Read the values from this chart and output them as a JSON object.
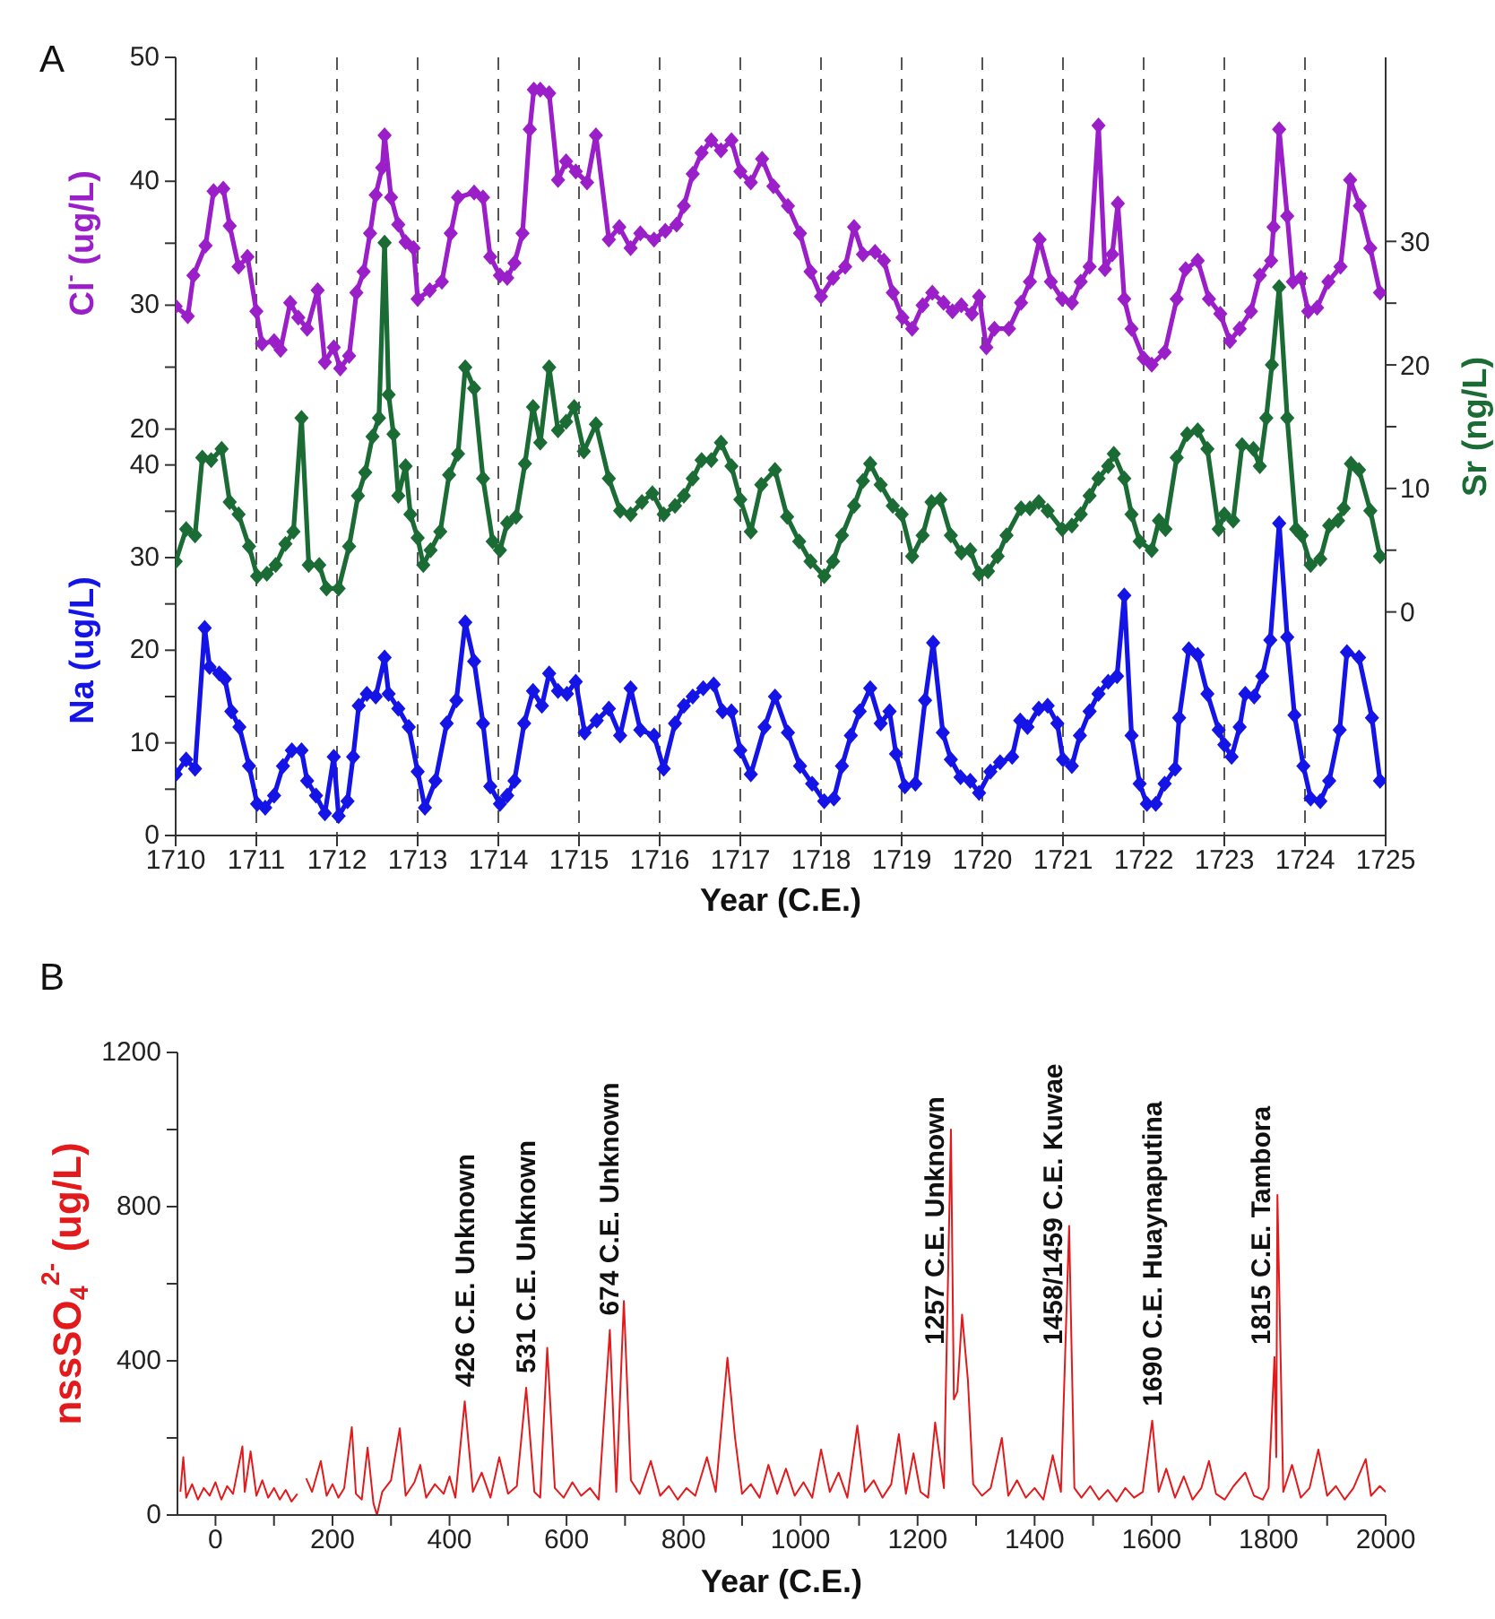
{
  "chart_data": [
    {
      "type": "line",
      "title": "A",
      "xlabel": "Year (C.E.)",
      "ylabel": "Cl$^{-}$ (ug/L)",
      "y2label": "Sr (ng/L)",
      "y3label": "Na (ug/L)",
      "xlim": [
        1710,
        1725
      ],
      "xticks": [
        1710,
        1711,
        1712,
        1713,
        1714,
        1715,
        1716,
        1717,
        1718,
        1719,
        1720,
        1721,
        1722,
        1723,
        1724,
        1725
      ],
      "ylim": [
        -12.8,
        50
      ],
      "yticks": [
        20,
        {
          "value": 25,
          "label": null
        },
        30,
        {
          "value": 35,
          "label": null
        },
        40,
        {
          "value": 45,
          "label": null
        },
        50
      ],
      "y2lim": [
        -18.1,
        44.9
      ],
      "y2ticks": [
        0,
        {
          "value": 5,
          "label": null
        },
        10,
        {
          "value": 15,
          "label": null
        },
        20,
        {
          "value": 25,
          "label": null
        },
        30
      ],
      "y3lim": [
        0,
        84
      ],
      "y3ticks": [
        0,
        {
          "value": 5,
          "label": null
        },
        10,
        {
          "value": 15,
          "label": null
        },
        20,
        {
          "value": 25,
          "label": null
        },
        30,
        {
          "value": 35,
          "label": null
        },
        40
      ],
      "grid": "x",
      "marker": "diamond",
      "series": [
        {
          "color": "#9a1fc8",
          "axis": "y",
          "x": [
            1710.0,
            1710.15,
            1710.22,
            1710.37,
            1710.47,
            1710.59,
            1710.67,
            1710.78,
            1710.89,
            1711.0,
            1711.07,
            1711.22,
            1711.3,
            1711.42,
            1711.52,
            1711.63,
            1711.76,
            1711.85,
            1711.96,
            1712.04,
            1712.15,
            1712.24,
            1712.33,
            1712.41,
            1712.48,
            1712.56,
            1712.59,
            1712.67,
            1712.76,
            1712.85,
            1712.95,
            1713.0,
            1713.15,
            1713.3,
            1713.41,
            1713.5,
            1713.7,
            1713.81,
            1713.9,
            1714.02,
            1714.11,
            1714.2,
            1714.3,
            1714.39,
            1714.44,
            1714.52,
            1714.63,
            1714.74,
            1714.84,
            1714.96,
            1715.1,
            1715.21,
            1715.37,
            1715.5,
            1715.64,
            1715.76,
            1715.93,
            1716.07,
            1716.21,
            1716.3,
            1716.41,
            1716.52,
            1716.64,
            1716.76,
            1716.89,
            1717.0,
            1717.13,
            1717.27,
            1717.41,
            1717.59,
            1717.74,
            1717.87,
            1718.0,
            1718.15,
            1718.3,
            1718.41,
            1718.52,
            1718.67,
            1718.78,
            1718.89,
            1719.01,
            1719.13,
            1719.26,
            1719.38,
            1719.52,
            1719.63,
            1719.74,
            1719.87,
            1719.96,
            1720.05,
            1720.15,
            1720.33,
            1720.48,
            1720.59,
            1720.71,
            1720.85,
            1720.99,
            1721.11,
            1721.22,
            1721.33,
            1721.44,
            1721.52,
            1721.61,
            1721.68,
            1721.76,
            1721.85,
            1722.0,
            1722.1,
            1722.26,
            1722.41,
            1722.52,
            1722.67,
            1722.81,
            1722.95,
            1723.07,
            1723.19,
            1723.33,
            1723.44,
            1723.58,
            1723.61,
            1723.68,
            1723.78,
            1723.85,
            1723.95,
            1724.04,
            1724.15,
            1724.29,
            1724.44,
            1724.56,
            1724.68,
            1724.81,
            1724.93
          ],
          "values": [
            29.9,
            29.1,
            32.4,
            34.8,
            39.2,
            39.4,
            36.4,
            33.1,
            33.9,
            29.5,
            26.9,
            27.1,
            26.4,
            30.2,
            29.0,
            28.1,
            31.2,
            25.4,
            26.6,
            24.9,
            25.9,
            31.0,
            32.7,
            35.8,
            38.9,
            41.1,
            43.7,
            38.7,
            36.5,
            35.1,
            34.6,
            30.5,
            31.2,
            31.9,
            35.8,
            38.7,
            39.1,
            38.7,
            33.9,
            32.4,
            32.2,
            33.4,
            35.8,
            44.2,
            47.4,
            47.4,
            47.1,
            40.1,
            41.6,
            40.8,
            39.9,
            43.7,
            35.3,
            36.3,
            34.6,
            35.8,
            35.3,
            36.0,
            36.5,
            38.0,
            40.6,
            42.3,
            43.3,
            42.5,
            43.3,
            40.8,
            39.9,
            41.8,
            39.6,
            38.0,
            35.8,
            32.7,
            30.7,
            32.2,
            33.1,
            36.3,
            34.1,
            34.3,
            33.6,
            31.0,
            29.0,
            28.1,
            30.0,
            31.0,
            30.2,
            29.5,
            30.0,
            29.3,
            30.7,
            26.6,
            28.1,
            28.1,
            30.2,
            31.9,
            35.3,
            31.9,
            30.5,
            30.2,
            31.9,
            33.1,
            44.5,
            32.9,
            34.1,
            38.2,
            30.5,
            28.1,
            25.7,
            25.2,
            26.2,
            30.5,
            32.9,
            33.6,
            30.5,
            29.3,
            27.1,
            28.1,
            29.5,
            32.4,
            33.6,
            36.3,
            44.2,
            37.2,
            31.9,
            32.2,
            29.5,
            29.8,
            31.9,
            33.1,
            40.1,
            38.0,
            34.6,
            31.0
          ]
        },
        {
          "color": "#1b6b35",
          "axis": "y2",
          "x": [
            1710.0,
            1710.13,
            1710.24,
            1710.33,
            1710.44,
            1710.57,
            1710.67,
            1710.78,
            1710.91,
            1711.01,
            1711.13,
            1711.24,
            1711.36,
            1711.46,
            1711.56,
            1711.65,
            1711.78,
            1711.87,
            1712.02,
            1712.15,
            1712.26,
            1712.35,
            1712.44,
            1712.52,
            1712.59,
            1712.64,
            1712.7,
            1712.76,
            1712.85,
            1712.91,
            1713.0,
            1713.07,
            1713.16,
            1713.28,
            1713.39,
            1713.5,
            1713.59,
            1713.7,
            1713.81,
            1713.93,
            1714.02,
            1714.11,
            1714.22,
            1714.33,
            1714.43,
            1714.52,
            1714.63,
            1714.74,
            1714.84,
            1714.94,
            1715.06,
            1715.21,
            1715.37,
            1715.51,
            1715.64,
            1715.78,
            1715.91,
            1716.05,
            1716.19,
            1716.3,
            1716.41,
            1716.52,
            1716.64,
            1716.76,
            1716.89,
            1717.0,
            1717.13,
            1717.26,
            1717.43,
            1717.58,
            1717.73,
            1717.87,
            1718.04,
            1718.15,
            1718.26,
            1718.41,
            1718.52,
            1718.61,
            1718.74,
            1718.89,
            1719.0,
            1719.13,
            1719.26,
            1719.37,
            1719.48,
            1719.61,
            1719.74,
            1719.85,
            1719.96,
            1720.07,
            1720.19,
            1720.3,
            1720.48,
            1720.59,
            1720.7,
            1720.81,
            1720.99,
            1721.11,
            1721.22,
            1721.33,
            1721.44,
            1721.56,
            1721.63,
            1721.76,
            1721.85,
            1721.95,
            1722.1,
            1722.19,
            1722.27,
            1722.41,
            1722.54,
            1722.67,
            1722.79,
            1722.93,
            1723.0,
            1723.11,
            1723.22,
            1723.36,
            1723.44,
            1723.52,
            1723.59,
            1723.68,
            1723.78,
            1723.89,
            1723.96,
            1724.07,
            1724.19,
            1724.3,
            1724.41,
            1724.48,
            1724.57,
            1724.67,
            1724.81,
            1724.93
          ],
          "values": [
            4.1,
            6.7,
            6.2,
            12.5,
            12.3,
            13.2,
            8.9,
            7.9,
            5.3,
            2.9,
            3.1,
            3.8,
            5.5,
            6.5,
            15.7,
            3.8,
            3.8,
            1.9,
            1.9,
            5.3,
            9.4,
            11.3,
            14.2,
            15.7,
            29.9,
            17.6,
            14.4,
            9.4,
            11.8,
            7.9,
            6.0,
            3.8,
            5.0,
            6.5,
            11.1,
            12.8,
            19.8,
            18.1,
            10.8,
            5.7,
            5.0,
            7.2,
            7.7,
            12.0,
            16.6,
            13.7,
            19.8,
            14.7,
            15.4,
            16.6,
            13.0,
            15.2,
            10.8,
            8.2,
            7.9,
            8.9,
            9.6,
            7.9,
            8.6,
            9.4,
            10.8,
            12.3,
            12.3,
            13.7,
            11.8,
            9.1,
            6.5,
            10.3,
            11.5,
            7.7,
            5.7,
            4.1,
            2.9,
            4.1,
            6.2,
            8.6,
            10.6,
            12.0,
            10.3,
            8.6,
            7.9,
            4.5,
            6.2,
            8.9,
            9.1,
            6.2,
            4.8,
            5.0,
            3.1,
            3.3,
            4.5,
            6.2,
            8.4,
            8.4,
            8.9,
            8.2,
            6.7,
            7.0,
            7.9,
            9.4,
            10.8,
            11.8,
            12.8,
            10.8,
            7.9,
            5.7,
            5.0,
            7.4,
            6.7,
            12.5,
            14.4,
            14.7,
            13.2,
            6.7,
            7.9,
            7.4,
            13.5,
            13.2,
            11.8,
            15.7,
            20.0,
            26.3,
            15.7,
            6.7,
            6.2,
            3.8,
            4.3,
            7.0,
            7.4,
            8.4,
            12.0,
            11.5,
            8.2,
            4.5
          ]
        },
        {
          "color": "#1414e6",
          "axis": "y3",
          "x": [
            1710.0,
            1710.13,
            1710.24,
            1710.36,
            1710.42,
            1710.54,
            1710.61,
            1710.69,
            1710.79,
            1710.91,
            1711.01,
            1711.11,
            1711.22,
            1711.33,
            1711.44,
            1711.56,
            1711.63,
            1711.74,
            1711.85,
            1711.96,
            1712.02,
            1712.13,
            1712.2,
            1712.27,
            1712.37,
            1712.48,
            1712.59,
            1712.64,
            1712.76,
            1712.89,
            1713.0,
            1713.09,
            1713.22,
            1713.36,
            1713.48,
            1713.59,
            1713.7,
            1713.81,
            1713.9,
            1714.02,
            1714.11,
            1714.2,
            1714.32,
            1714.43,
            1714.54,
            1714.63,
            1714.74,
            1714.85,
            1714.96,
            1715.07,
            1715.22,
            1715.37,
            1715.51,
            1715.64,
            1715.76,
            1715.93,
            1716.05,
            1716.19,
            1716.3,
            1716.41,
            1716.54,
            1716.67,
            1716.78,
            1716.89,
            1717.0,
            1717.13,
            1717.3,
            1717.43,
            1717.59,
            1717.74,
            1717.89,
            1718.04,
            1718.16,
            1718.26,
            1718.37,
            1718.48,
            1718.61,
            1718.74,
            1718.85,
            1718.93,
            1719.04,
            1719.17,
            1719.29,
            1719.39,
            1719.51,
            1719.61,
            1719.73,
            1719.85,
            1719.96,
            1720.1,
            1720.22,
            1720.37,
            1720.47,
            1720.56,
            1720.7,
            1720.81,
            1720.93,
            1721.0,
            1721.11,
            1721.21,
            1721.33,
            1721.44,
            1721.56,
            1721.67,
            1721.76,
            1721.85,
            1721.95,
            1722.04,
            1722.15,
            1722.26,
            1722.39,
            1722.44,
            1722.56,
            1722.67,
            1722.79,
            1722.93,
            1723.0,
            1723.09,
            1723.19,
            1723.26,
            1723.37,
            1723.47,
            1723.57,
            1723.68,
            1723.78,
            1723.87,
            1723.98,
            1724.07,
            1724.19,
            1724.3,
            1724.43,
            1724.52,
            1724.67,
            1724.83,
            1724.93
          ],
          "values": [
            6.6,
            8.2,
            7.2,
            22.4,
            18.2,
            17.5,
            16.9,
            13.4,
            11.7,
            7.5,
            3.4,
            3.0,
            4.3,
            7.5,
            9.2,
            9.2,
            5.9,
            4.3,
            2.4,
            8.5,
            2.1,
            3.7,
            8.5,
            14.0,
            15.3,
            15.0,
            19.2,
            15.3,
            13.7,
            11.7,
            6.9,
            3.0,
            5.9,
            12.1,
            14.6,
            23.0,
            18.8,
            12.1,
            5.3,
            3.4,
            4.3,
            5.9,
            12.1,
            15.6,
            14.0,
            17.5,
            15.6,
            15.3,
            16.6,
            11.1,
            12.4,
            13.7,
            10.8,
            15.9,
            11.4,
            10.8,
            7.2,
            12.1,
            14.0,
            15.0,
            15.9,
            16.3,
            13.4,
            13.4,
            9.2,
            6.6,
            11.7,
            15.0,
            11.1,
            7.5,
            5.6,
            3.7,
            4.0,
            7.5,
            10.8,
            13.4,
            15.9,
            12.1,
            13.4,
            8.8,
            5.3,
            5.6,
            14.6,
            20.8,
            11.1,
            8.2,
            6.3,
            5.9,
            4.6,
            6.9,
            7.9,
            8.5,
            12.4,
            11.7,
            13.7,
            14.0,
            12.1,
            8.2,
            7.5,
            10.8,
            13.4,
            15.3,
            16.6,
            17.2,
            25.9,
            10.8,
            5.6,
            3.4,
            3.4,
            5.6,
            7.2,
            12.7,
            20.1,
            19.5,
            15.3,
            11.4,
            9.8,
            8.5,
            11.7,
            15.3,
            15.0,
            17.2,
            21.1,
            33.7,
            21.4,
            13.0,
            7.5,
            4.0,
            3.7,
            5.9,
            11.4,
            19.8,
            19.2,
            12.7,
            5.9
          ]
        }
      ]
    },
    {
      "type": "line",
      "title": "B",
      "xlabel": "Year (C.E.)",
      "ylabel": "nssSO$_{4}$$^{2-}$ (ug/L)",
      "xlim": [
        -65,
        2000
      ],
      "xticks": [
        0,
        {
          "value": 100,
          "label": null
        },
        200,
        {
          "value": 300,
          "label": null
        },
        400,
        {
          "value": 500,
          "label": null
        },
        600,
        {
          "value": 700,
          "label": null
        },
        800,
        {
          "value": 900,
          "label": null
        },
        1000,
        {
          "value": 1100,
          "label": null
        },
        1200,
        {
          "value": 1300,
          "label": null
        },
        1400,
        {
          "value": 1500,
          "label": null
        },
        1600,
        {
          "value": 1700,
          "label": null
        },
        1800,
        {
          "value": 1900,
          "label": null
        },
        2000
      ],
      "ylim": [
        0,
        1200
      ],
      "yticks": [
        0,
        {
          "value": 200,
          "label": null
        },
        400,
        {
          "value": 600,
          "label": null
        },
        800,
        {
          "value": 1000,
          "label": null
        },
        1200
      ],
      "annotations": [
        {
          "text": "426 C.E. Unknown",
          "x": 426,
          "y": 295
        },
        {
          "text": "531 C.E. Unknown",
          "x": 531,
          "y": 330
        },
        {
          "text": "674 C.E. Unknown",
          "x": 674,
          "y": 480
        },
        {
          "text": "1257 C.E. Unknown",
          "x": 1257,
          "y": 1000
        },
        {
          "text": "1458/1459 C.E. Kuwae",
          "x": 1459,
          "y": 750
        },
        {
          "text": "1690 C.E. Huaynaputina",
          "x": 1601,
          "y": 245
        },
        {
          "text": "1815 C.E. Tambora",
          "x": 1815,
          "y": 830
        }
      ],
      "series": [
        {
          "color": "#e31a1c",
          "axis": "y",
          "x": [
            -60,
            -55,
            -50,
            -40,
            -30,
            -20,
            -10,
            0,
            10,
            20,
            30,
            46,
            50,
            60,
            70,
            80,
            90,
            100,
            110,
            120,
            130,
            140,
            148,
            155,
            165,
            180,
            190,
            200,
            210,
            220,
            233,
            240,
            250,
            260,
            270,
            276,
            285,
            300,
            315,
            325,
            340,
            350,
            360,
            375,
            390,
            400,
            410,
            426,
            440,
            455,
            470,
            485,
            500,
            515,
            531,
            545,
            555,
            567,
            580,
            595,
            610,
            625,
            640,
            655,
            674,
            685,
            698,
            710,
            725,
            744,
            760,
            775,
            790,
            805,
            820,
            840,
            855,
            875,
            888,
            900,
            915,
            930,
            945,
            960,
            975,
            990,
            1005,
            1020,
            1035,
            1050,
            1065,
            1080,
            1097,
            1110,
            1125,
            1140,
            1155,
            1168,
            1180,
            1193,
            1205,
            1218,
            1230,
            1245,
            1257,
            1262,
            1268,
            1276,
            1286,
            1295,
            1310,
            1325,
            1344,
            1355,
            1370,
            1385,
            1400,
            1415,
            1431,
            1445,
            1459,
            1468,
            1480,
            1495,
            1510,
            1525,
            1540,
            1555,
            1570,
            1585,
            1601,
            1612,
            1625,
            1640,
            1655,
            1670,
            1685,
            1698,
            1710,
            1725,
            1740,
            1760,
            1775,
            1790,
            1800,
            1810,
            1813,
            1815,
            1825,
            1840,
            1855,
            1870,
            1885,
            1900,
            1915,
            1930,
            1945,
            1966,
            1975,
            1990,
            2000
          ],
          "values": [
            60,
            150,
            45,
            80,
            40,
            70,
            50,
            85,
            40,
            75,
            55,
            178,
            60,
            165,
            50,
            90,
            45,
            70,
            40,
            65,
            35,
            55,
            null,
            95,
            60,
            140,
            50,
            80,
            45,
            70,
            228,
            55,
            40,
            175,
            30,
            0,
            60,
            90,
            225,
            50,
            85,
            130,
            45,
            80,
            55,
            100,
            45,
            295,
            60,
            110,
            45,
            150,
            55,
            75,
            330,
            60,
            45,
            434,
            70,
            45,
            85,
            50,
            70,
            40,
            480,
            60,
            555,
            90,
            55,
            140,
            50,
            75,
            40,
            70,
            50,
            150,
            60,
            408,
            200,
            55,
            80,
            45,
            130,
            55,
            120,
            50,
            85,
            45,
            170,
            60,
            110,
            45,
            232,
            60,
            90,
            45,
            80,
            210,
            55,
            160,
            60,
            45,
            240,
            70,
            1000,
            300,
            320,
            520,
            350,
            80,
            50,
            70,
            200,
            50,
            90,
            45,
            70,
            40,
            155,
            60,
            750,
            70,
            45,
            75,
            40,
            65,
            35,
            70,
            45,
            60,
            245,
            60,
            120,
            45,
            100,
            40,
            70,
            140,
            55,
            40,
            75,
            110,
            50,
            40,
            70,
            410,
            150,
            830,
            60,
            130,
            45,
            70,
            170,
            50,
            75,
            40,
            70,
            145,
            50,
            75,
            60
          ]
        }
      ]
    }
  ]
}
